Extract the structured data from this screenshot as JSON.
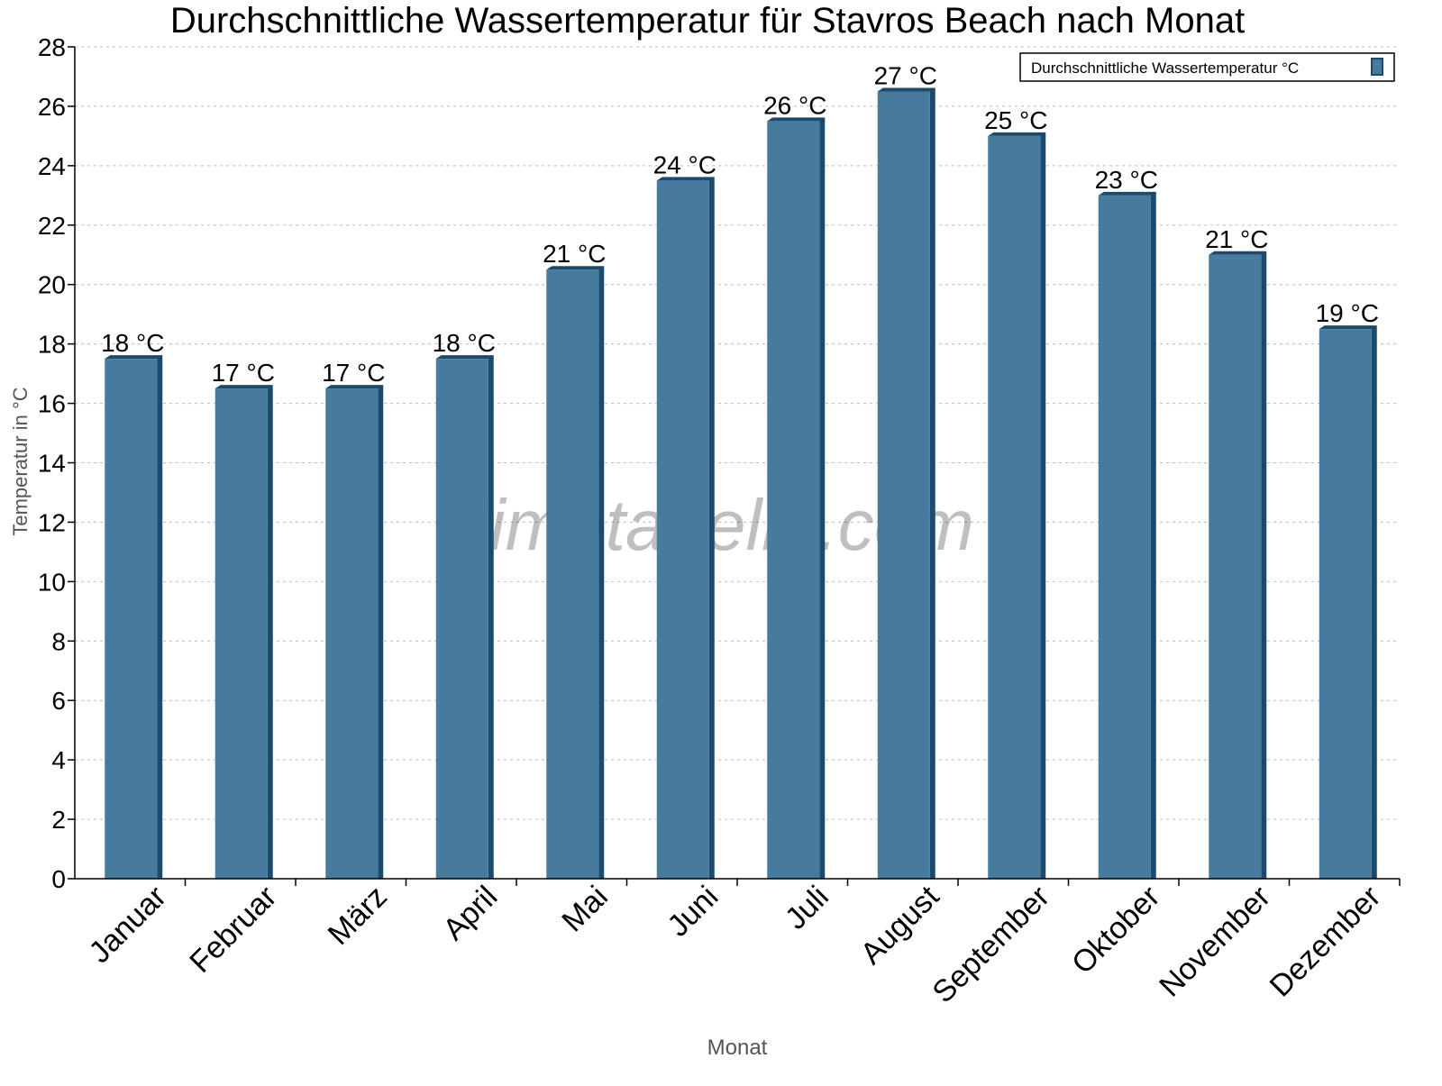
{
  "chart_data": {
    "type": "bar",
    "title": "Durchschnittliche Wassertemperatur für Stavros Beach nach Monat",
    "xlabel": "Monat",
    "ylabel": "Temperatur in °C",
    "categories": [
      "Januar",
      "Februar",
      "März",
      "April",
      "Mai",
      "Juni",
      "Juli",
      "August",
      "September",
      "Oktober",
      "November",
      "Dezember"
    ],
    "series": [
      {
        "name": "Durchschnittliche Wassertemperatur °C",
        "values": [
          17.5,
          16.5,
          16.5,
          17.5,
          20.5,
          23.5,
          25.5,
          26.5,
          25,
          23,
          21,
          18.5
        ],
        "data_labels": [
          "18 °C",
          "17 °C",
          "17 °C",
          "18 °C",
          "21 °C",
          "24 °C",
          "26 °C",
          "27 °C",
          "25 °C",
          "23 °C",
          "21 °C",
          "19 °C"
        ]
      }
    ],
    "ylim": [
      0,
      28
    ],
    "yticks": [
      "0",
      "2",
      "4",
      "6",
      "8",
      "10",
      "12",
      "14",
      "16",
      "18",
      "20",
      "22",
      "24",
      "26",
      "28"
    ],
    "grid": true,
    "legend_position": "top-right",
    "colors": {
      "bar": "#467b9e",
      "bar_shade": "#1a4b6e"
    },
    "watermark": "klimatabelle.com"
  }
}
